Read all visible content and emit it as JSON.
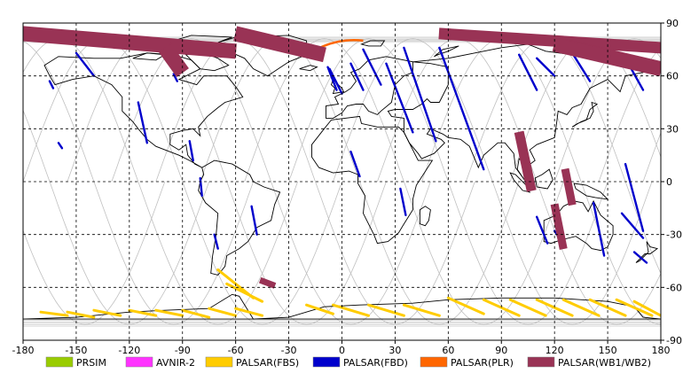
{
  "map": {
    "type": "world-coverage-map",
    "projection": "equirectangular",
    "lon_range": [
      -180,
      180
    ],
    "lat_range": [
      -90,
      90
    ],
    "grid": "dashed",
    "x_ticks": [
      "-180",
      "-150",
      "-120",
      "-90",
      "-60",
      "-30",
      "0",
      "30",
      "60",
      "90",
      "120",
      "150",
      "180"
    ],
    "y_ticks": [
      "90",
      "60",
      "30",
      "0",
      "-30",
      "-60",
      "-90"
    ],
    "colors": {
      "land": "#000000",
      "orbit": "#c0c0c0",
      "grid": "#000000"
    }
  },
  "legend": [
    {
      "label": "PRSIM",
      "color": "#99cc00"
    },
    {
      "label": "AVNIR-2",
      "color": "#ff33ff"
    },
    {
      "label": "PALSAR(FBS)",
      "color": "#ffcc00"
    },
    {
      "label": "PALSAR(FBD)",
      "color": "#0000cc"
    },
    {
      "label": "PALSAR(PLR)",
      "color": "#ff6600"
    },
    {
      "label": "PALSAR(WB1/WB2)",
      "color": "#993355"
    }
  ],
  "swaths": {
    "fbs": [
      {
        "lon": [
          -170,
          -155
        ],
        "lat": [
          -74,
          -76
        ]
      },
      {
        "lon": [
          -155,
          -140
        ],
        "lat": [
          -74,
          -77
        ]
      },
      {
        "lon": [
          -140,
          -125
        ],
        "lat": [
          -73,
          -76
        ]
      },
      {
        "lon": [
          -120,
          -105
        ],
        "lat": [
          -73,
          -76
        ]
      },
      {
        "lon": [
          -105,
          -90
        ],
        "lat": [
          -73,
          -76
        ]
      },
      {
        "lon": [
          -90,
          -75
        ],
        "lat": [
          -73,
          -77
        ]
      },
      {
        "lon": [
          -75,
          -60
        ],
        "lat": [
          -72,
          -76
        ]
      },
      {
        "lon": [
          -60,
          -45
        ],
        "lat": [
          -72,
          -76
        ]
      },
      {
        "lon": [
          -70,
          -50
        ],
        "lat": [
          -50,
          -66
        ]
      },
      {
        "lon": [
          -65,
          -45
        ],
        "lat": [
          -58,
          -68
        ]
      },
      {
        "lon": [
          -20,
          -5
        ],
        "lat": [
          -70,
          -75
        ]
      },
      {
        "lon": [
          -5,
          15
        ],
        "lat": [
          -70,
          -76
        ]
      },
      {
        "lon": [
          15,
          35
        ],
        "lat": [
          -70,
          -76
        ]
      },
      {
        "lon": [
          35,
          55
        ],
        "lat": [
          -70,
          -76
        ]
      },
      {
        "lon": [
          60,
          80
        ],
        "lat": [
          -66,
          -75
        ]
      },
      {
        "lon": [
          80,
          100
        ],
        "lat": [
          -67,
          -76
        ]
      },
      {
        "lon": [
          95,
          115
        ],
        "lat": [
          -67,
          -76
        ]
      },
      {
        "lon": [
          110,
          130
        ],
        "lat": [
          -67,
          -76
        ]
      },
      {
        "lon": [
          125,
          145
        ],
        "lat": [
          -67,
          -76
        ]
      },
      {
        "lon": [
          140,
          160
        ],
        "lat": [
          -67,
          -76
        ]
      },
      {
        "lon": [
          155,
          175
        ],
        "lat": [
          -67,
          -76
        ]
      },
      {
        "lon": [
          165,
          180
        ],
        "lat": [
          -68,
          -76
        ]
      }
    ],
    "fbd": [
      {
        "lon": [
          -150,
          -140
        ],
        "lat": [
          73,
          60
        ]
      },
      {
        "lon": [
          -165,
          -163
        ],
        "lat": [
          57,
          53
        ]
      },
      {
        "lon": [
          -160,
          -158
        ],
        "lat": [
          22,
          19
        ]
      },
      {
        "lon": [
          -115,
          -110
        ],
        "lat": [
          45,
          22
        ]
      },
      {
        "lon": [
          -95,
          -93
        ],
        "lat": [
          61,
          57
        ]
      },
      {
        "lon": [
          -86,
          -84
        ],
        "lat": [
          23,
          12
        ]
      },
      {
        "lon": [
          -80,
          -79
        ],
        "lat": [
          2,
          -8
        ]
      },
      {
        "lon": [
          -51,
          -48
        ],
        "lat": [
          -14,
          -30
        ]
      },
      {
        "lon": [
          -72,
          -70
        ],
        "lat": [
          -30,
          -38
        ]
      },
      {
        "lon": [
          -7,
          0
        ],
        "lat": [
          64,
          50
        ]
      },
      {
        "lon": [
          -8,
          -3
        ],
        "lat": [
          65,
          52
        ]
      },
      {
        "lon": [
          5,
          12
        ],
        "lat": [
          67,
          52
        ]
      },
      {
        "lon": [
          5,
          10
        ],
        "lat": [
          17,
          3
        ]
      },
      {
        "lon": [
          33,
          36
        ],
        "lat": [
          -4,
          -19
        ]
      },
      {
        "lon": [
          12,
          22
        ],
        "lat": [
          75,
          55
        ]
      },
      {
        "lon": [
          25,
          40
        ],
        "lat": [
          67,
          28
        ]
      },
      {
        "lon": [
          35,
          53
        ],
        "lat": [
          76,
          23
        ]
      },
      {
        "lon": [
          55,
          80
        ],
        "lat": [
          76,
          7
        ]
      },
      {
        "lon": [
          100,
          110
        ],
        "lat": [
          72,
          52
        ]
      },
      {
        "lon": [
          110,
          120
        ],
        "lat": [
          70,
          60
        ]
      },
      {
        "lon": [
          130,
          140
        ],
        "lat": [
          73,
          57
        ]
      },
      {
        "lon": [
          160,
          170
        ],
        "lat": [
          70,
          52
        ]
      },
      {
        "lon": [
          110,
          116
        ],
        "lat": [
          -20,
          -35
        ]
      },
      {
        "lon": [
          120,
          125
        ],
        "lat": [
          -28,
          -35
        ]
      },
      {
        "lon": [
          142,
          148
        ],
        "lat": [
          -12,
          -42
        ]
      },
      {
        "lon": [
          158,
          170
        ],
        "lat": [
          -18,
          -32
        ]
      },
      {
        "lon": [
          165,
          172
        ],
        "lat": [
          -40,
          -46
        ]
      },
      {
        "lon": [
          160,
          170
        ],
        "lat": [
          10,
          -28
        ]
      }
    ],
    "plr": [
      {
        "lon": [
          -20,
          12
        ],
        "lat": [
          72,
          80
        ]
      }
    ],
    "wb": [
      {
        "lon": [
          -180,
          -60
        ],
        "lat": [
          84,
          74
        ],
        "band": 8
      },
      {
        "lon": [
          -60,
          -10
        ],
        "lat": [
          84,
          72
        ],
        "band": 8
      },
      {
        "lon": [
          -100,
          -90
        ],
        "lat": [
          76,
          62
        ],
        "band": 8
      },
      {
        "lon": [
          55,
          180
        ],
        "lat": [
          84,
          76
        ],
        "band": 6
      },
      {
        "lon": [
          120,
          180
        ],
        "lat": [
          78,
          64
        ],
        "band": 8
      },
      {
        "lon": [
          100,
          107
        ],
        "lat": [
          28,
          -5
        ],
        "band": 5
      },
      {
        "lon": [
          126,
          130
        ],
        "lat": [
          7,
          -13
        ],
        "band": 4
      },
      {
        "lon": [
          120,
          125
        ],
        "lat": [
          -13,
          -38
        ],
        "band": 4
      },
      {
        "lon": [
          -46,
          -38
        ],
        "lat": [
          -56,
          -59
        ],
        "band": 3
      }
    ]
  }
}
